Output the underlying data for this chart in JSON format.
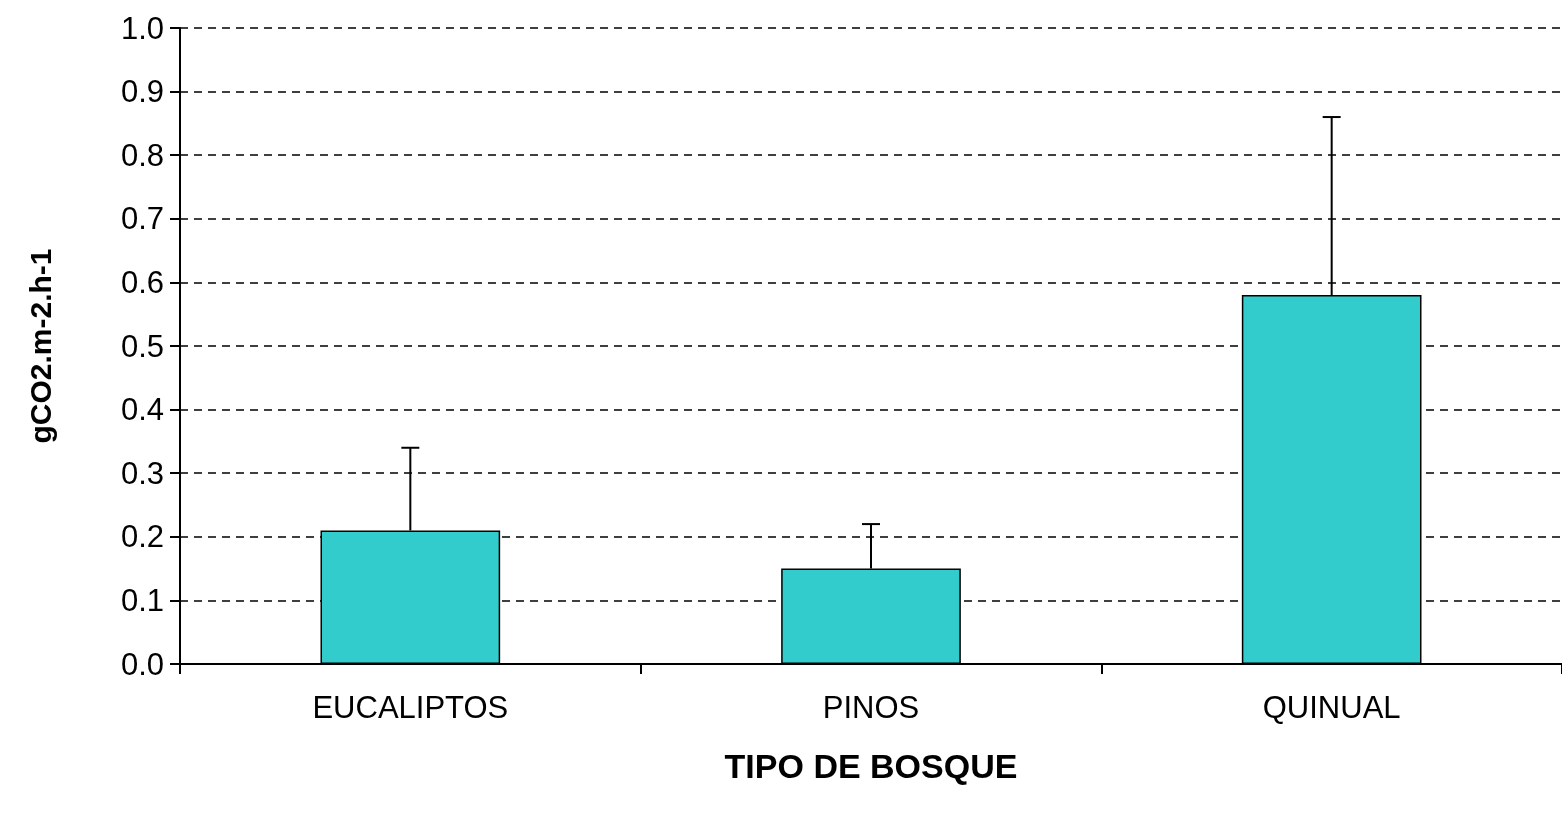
{
  "chart_data": {
    "type": "bar",
    "xlabel": "TIPO DE BOSQUE",
    "ylabel": "gCO2.m-2.h-1",
    "categories": [
      "EUCALIPTOS",
      "PINOS",
      "QUINUAL"
    ],
    "values": [
      0.21,
      0.15,
      0.58
    ],
    "errors": [
      [
        0.21,
        0.34
      ],
      [
        0.15,
        0.22
      ],
      [
        0.58,
        0.86
      ]
    ],
    "color": "#33cccc",
    "ylim": [
      0,
      1
    ],
    "yticks": [
      {
        "value": 0,
        "label": "0.0"
      },
      0.1,
      0.2,
      0.3,
      0.4,
      0.5,
      0.6,
      0.7,
      0.8,
      0.9,
      {
        "value": 1,
        "label": "1.0"
      }
    ],
    "grid": "y"
  }
}
